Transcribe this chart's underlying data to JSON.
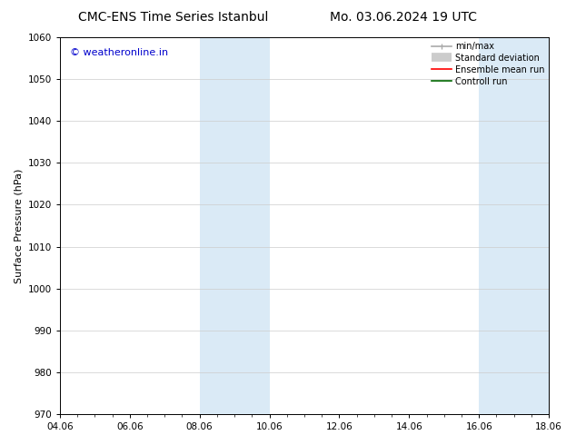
{
  "title_left": "CMC-ENS Time Series Istanbul",
  "title_right": "Mo. 03.06.2024 19 UTC",
  "ylabel": "Surface Pressure (hPa)",
  "ylim": [
    970,
    1060
  ],
  "yticks": [
    970,
    980,
    990,
    1000,
    1010,
    1020,
    1030,
    1040,
    1050,
    1060
  ],
  "xtick_labels": [
    "04.06",
    "06.06",
    "08.06",
    "10.06",
    "12.06",
    "14.06",
    "16.06",
    "18.06"
  ],
  "xtick_positions": [
    0,
    2,
    4,
    6,
    8,
    10,
    12,
    14
  ],
  "xlim": [
    0,
    14
  ],
  "shaded_bands": [
    {
      "x_start": 4.0,
      "x_end": 6.0,
      "color": "#daeaf6"
    },
    {
      "x_start": 12.0,
      "x_end": 14.0,
      "color": "#daeaf6"
    }
  ],
  "watermark_text": "© weatheronline.in",
  "watermark_color": "#0000cc",
  "legend_entries": [
    {
      "label": "min/max",
      "color": "#aaaaaa",
      "lw": 1.2
    },
    {
      "label": "Standard deviation",
      "color": "#cccccc",
      "lw": 7
    },
    {
      "label": "Ensemble mean run",
      "color": "#ff0000",
      "lw": 1.2
    },
    {
      "label": "Controll run",
      "color": "#006600",
      "lw": 1.2
    }
  ],
  "background_color": "#ffffff",
  "grid_color": "#cccccc",
  "title_fontsize": 10,
  "ylabel_fontsize": 8,
  "tick_fontsize": 7.5,
  "legend_fontsize": 7,
  "watermark_fontsize": 8
}
